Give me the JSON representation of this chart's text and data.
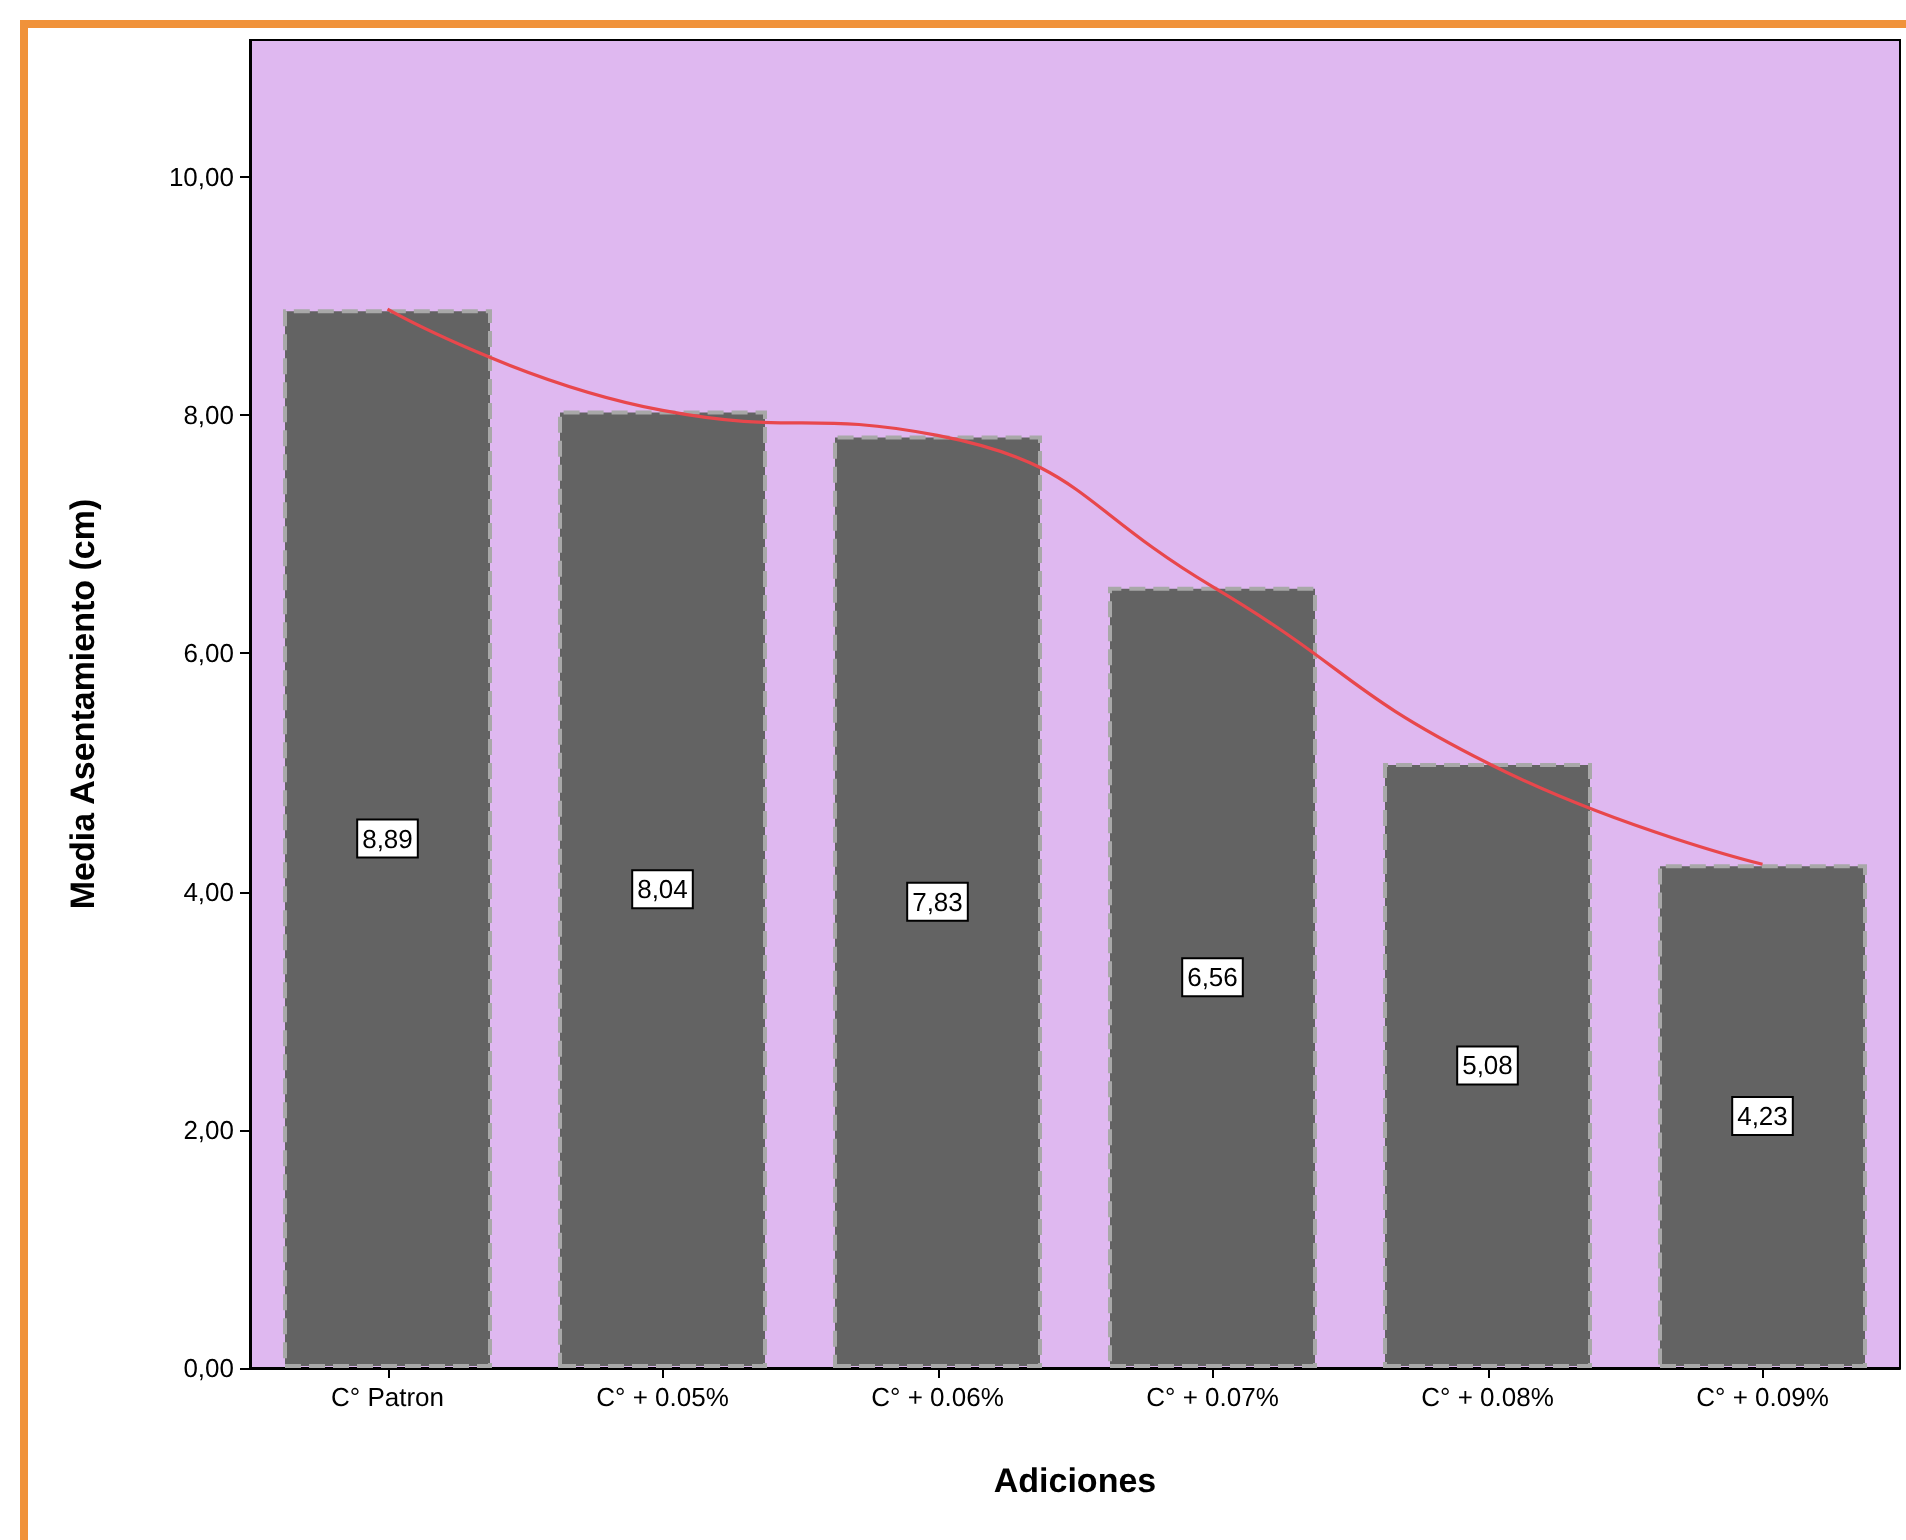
{
  "chart_data": {
    "type": "bar",
    "xlabel": "Adiciones",
    "ylabel": "Media Asentamiento (cm)",
    "categories": [
      "C° Patron",
      "C° + 0.05%",
      "C° + 0.06%",
      "C° + 0.07%",
      "C° + 0.08%",
      "C° + 0.09%"
    ],
    "series": [
      {
        "color": "#636363",
        "values": [
          8.89,
          8.04,
          7.83,
          6.56,
          5.08,
          4.23
        ],
        "value_labels": [
          "8,89",
          "8,04",
          "7,83",
          "6,56",
          "5,08",
          "4,23"
        ]
      },
      {
        "type": "line",
        "color": "#e8474c",
        "values": [
          8.89,
          8.04,
          7.83,
          6.56,
          5.08,
          4.23
        ],
        "marker": "none",
        "line_style": "solid"
      }
    ],
    "ylim": [
      0,
      11.15
    ],
    "yticks": [
      {
        "value": 0,
        "label": "0,00"
      },
      {
        "value": 2,
        "label": "2,00"
      },
      {
        "value": 4,
        "label": "4,00"
      },
      {
        "value": 6,
        "label": "6,00"
      },
      {
        "value": 8,
        "label": "8,00"
      },
      {
        "value": 10,
        "label": "10,00"
      }
    ],
    "grid": false
  }
}
